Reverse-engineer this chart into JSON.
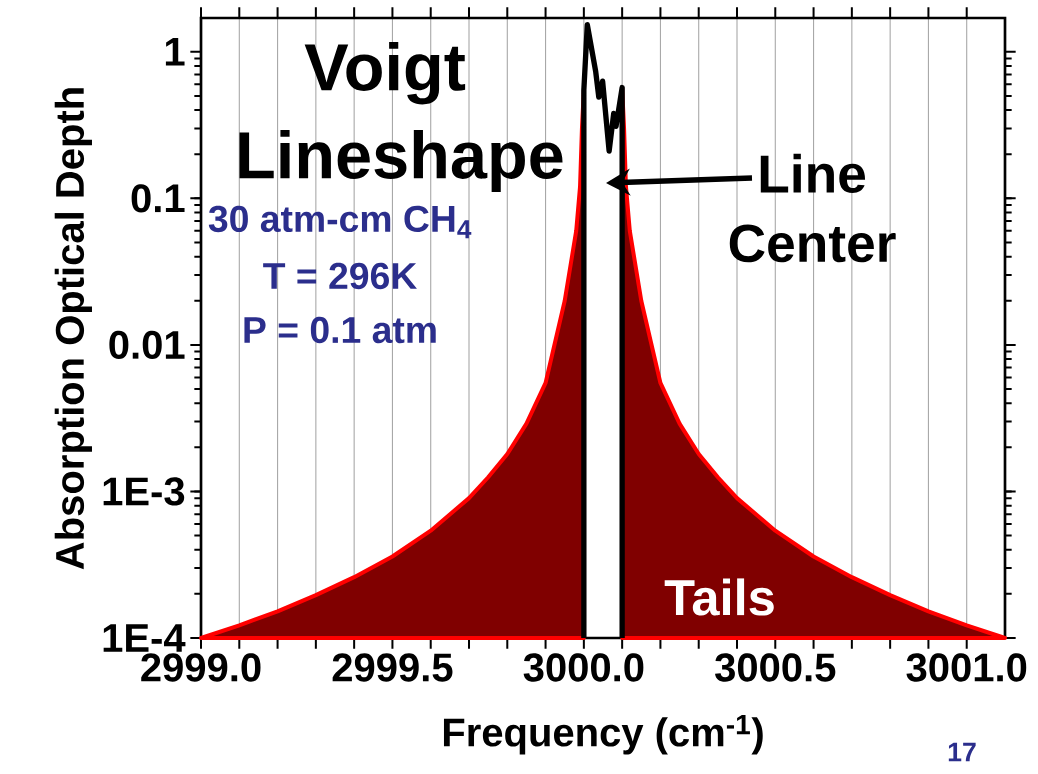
{
  "chart_data": {
    "type": "area",
    "xlabel": "Frequency (cm$^{-1}$)",
    "ylabel": "Absorption Optical Depth",
    "log": "y",
    "grid": "x",
    "xlim": [
      2999.0,
      3001.1
    ],
    "ylim": [
      0.0001,
      1.7
    ],
    "xticks": [
      {
        "value": 2999.0,
        "label": "2999.0"
      },
      {
        "value": 2999.1,
        "label": null
      },
      {
        "value": 2999.2,
        "label": null
      },
      {
        "value": 2999.3,
        "label": null
      },
      {
        "value": 2999.4,
        "label": null
      },
      {
        "value": 2999.5,
        "label": "2999.5"
      },
      {
        "value": 2999.6,
        "label": null
      },
      {
        "value": 2999.7,
        "label": null
      },
      {
        "value": 2999.8,
        "label": null
      },
      {
        "value": 2999.9,
        "label": null
      },
      {
        "value": 3000.0,
        "label": "3000.0"
      },
      {
        "value": 3000.1,
        "label": null
      },
      {
        "value": 3000.2,
        "label": null
      },
      {
        "value": 3000.3,
        "label": null
      },
      {
        "value": 3000.4,
        "label": null
      },
      {
        "value": 3000.5,
        "label": "3000.5"
      },
      {
        "value": 3000.6,
        "label": null
      },
      {
        "value": 3000.7,
        "label": null
      },
      {
        "value": 3000.8,
        "label": null
      },
      {
        "value": 3000.9,
        "label": null
      },
      {
        "value": 3001.0,
        "label": "3001.0"
      }
    ],
    "yticks": [
      {
        "value": 0.0001,
        "label": "1E-4"
      },
      {
        "value": 0.001,
        "label": "1E-3"
      },
      0.01,
      0.1,
      1
    ],
    "series": [
      {
        "color": "#800000",
        "x": [
          2999.0,
          2999.1,
          2999.2,
          2999.3,
          2999.4,
          2999.5,
          2999.6,
          2999.7,
          2999.75,
          2999.8,
          2999.85,
          2999.9,
          2999.95,
          2999.98,
          2999.99,
          2999.995,
          3000.0,
          3000.05,
          3000.1,
          3000.105,
          3000.11,
          3000.12,
          3000.15,
          3000.2,
          3000.25,
          3000.3,
          3000.35,
          3000.4,
          3000.5,
          3000.6,
          3000.7,
          3000.8,
          3000.9,
          3001.0,
          3001.1
        ],
        "values": [
          0.0001,
          0.000122,
          0.000152,
          0.000196,
          0.00026,
          0.00036,
          0.00054,
          0.0009,
          0.00125,
          0.0018,
          0.0029,
          0.0055,
          0.02,
          0.06,
          0.12,
          0.3,
          0.55,
          null,
          0.57,
          0.3,
          0.12,
          0.06,
          0.02,
          0.0055,
          0.0029,
          0.0018,
          0.00125,
          0.0009,
          0.00054,
          0.00036,
          0.00026,
          0.000196,
          0.000152,
          0.000122,
          0.0001
        ]
      },
      {
        "type": "line",
        "color": "#000000",
        "x": [
          3000.0,
          3000.0,
          3000.009,
          3000.031,
          3000.039,
          3000.049,
          3000.066,
          3000.078,
          3000.084,
          3000.1,
          3000.1
        ],
        "values": [
          0.0001,
          0.55,
          1.53,
          0.73,
          0.49,
          0.63,
          0.21,
          0.38,
          0.31,
          0.57,
          0.0001
        ]
      }
    ],
    "annotations": [
      "Voigt Lineshape",
      "30 atm-cm CH$_{4}$",
      "T = 296K",
      "P = 0.1 atm",
      "Line Center",
      "Tails",
      "17"
    ]
  }
}
